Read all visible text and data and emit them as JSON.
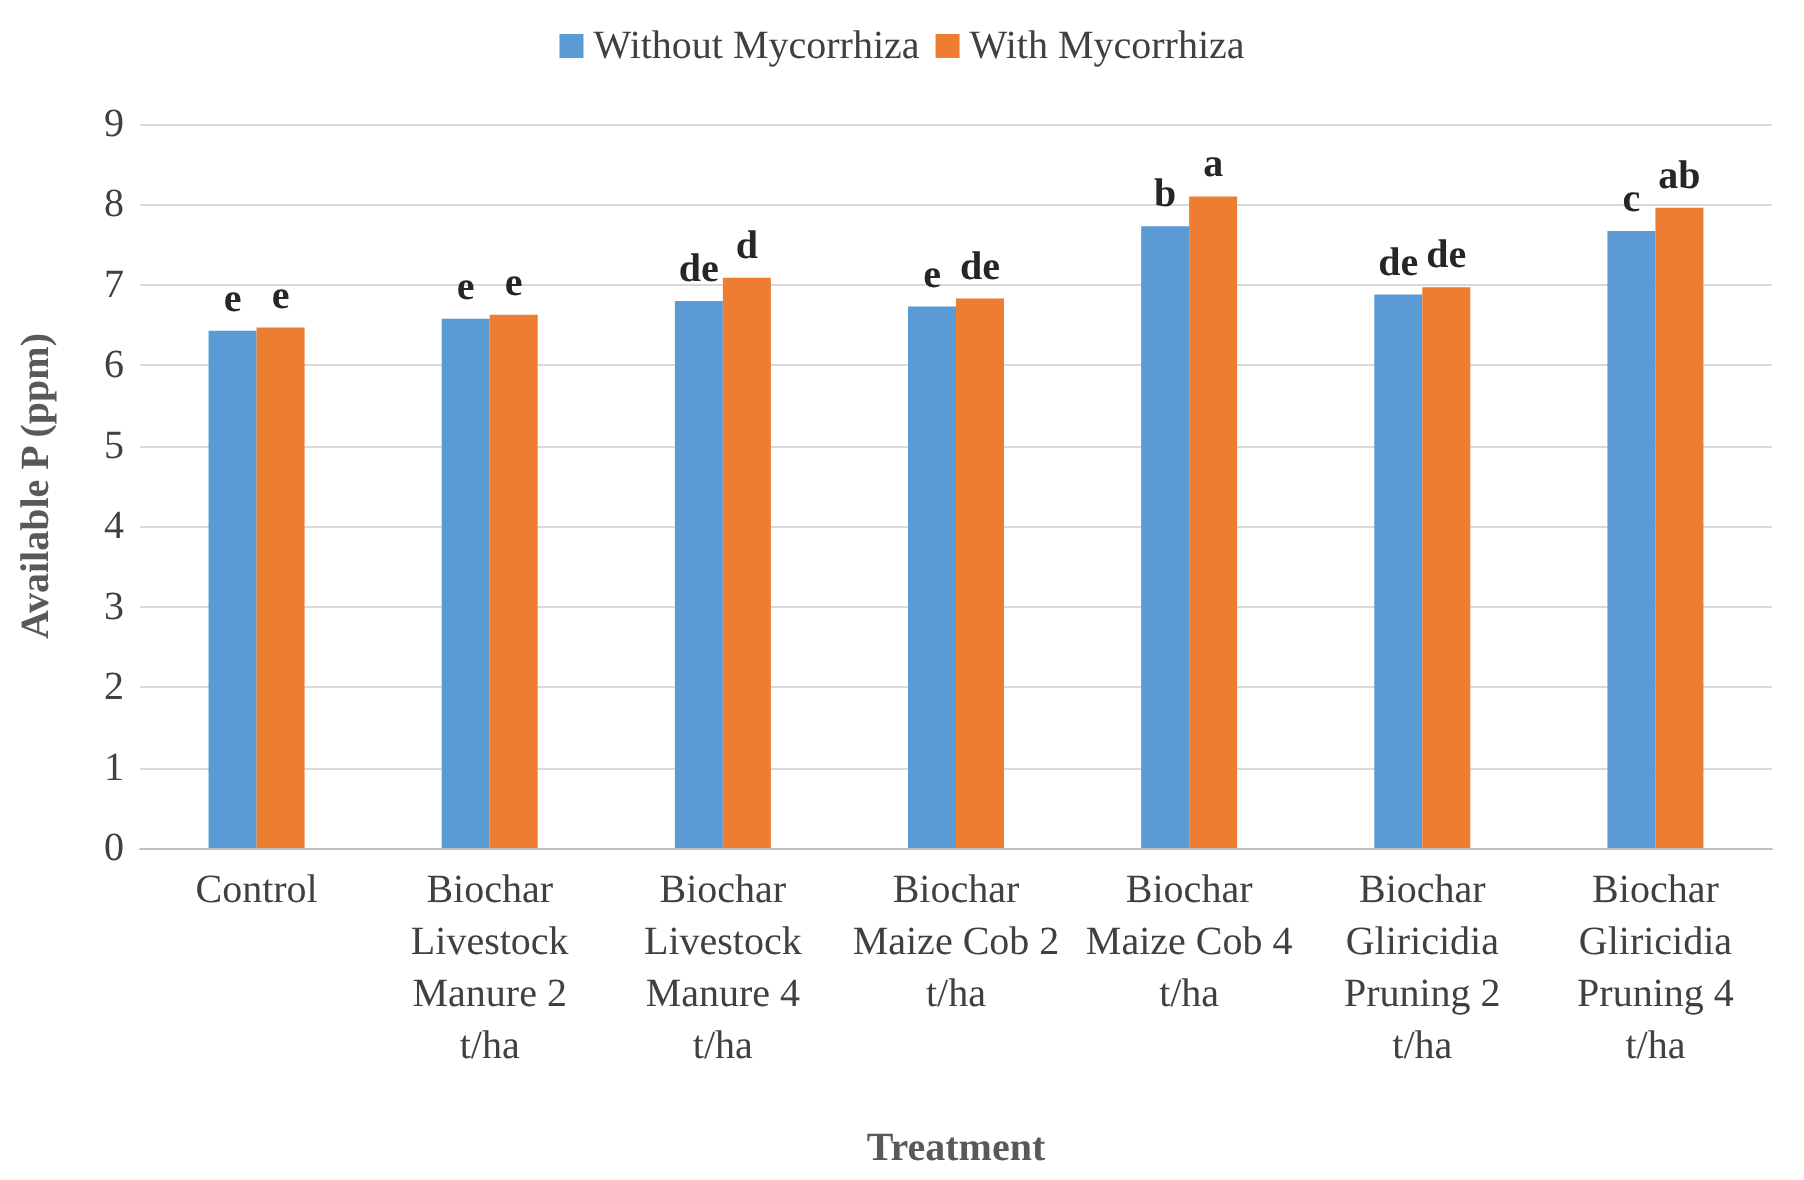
{
  "chart_data": {
    "type": "bar",
    "xlabel": "Treatment",
    "ylabel": "Available P (ppm)",
    "categories": [
      "Control",
      "Biochar Livestock Manure 2 t/ha",
      "Biochar Livestock Manure 4 t/ha",
      "Biochar Maize Cob 2 t/ha",
      "Biochar Maize Cob 4 t/ha",
      "Biochar Gliricidia Pruning 2 t/ha",
      "Biochar Gliricidia Pruning 4 t/ha"
    ],
    "series": [
      {
        "name": "Without Mycorrhiza",
        "color": "#5b9bd5",
        "values": [
          6.43,
          6.58,
          6.8,
          6.73,
          7.73,
          6.88,
          7.67
        ],
        "value_labels": [
          "e",
          "e",
          "de",
          "e",
          "b",
          "de",
          "c"
        ]
      },
      {
        "name": "With Mycorrhiza",
        "color": "#ed7d31",
        "values": [
          6.47,
          6.63,
          7.09,
          6.83,
          8.1,
          6.97,
          7.96
        ],
        "value_labels": [
          "e",
          "e",
          "d",
          "de",
          "a",
          "de",
          "ab"
        ]
      }
    ],
    "ylim": [
      0,
      9
    ],
    "yticks": [
      0,
      1,
      2,
      3,
      4,
      5,
      6,
      7,
      8,
      9
    ],
    "grid": "y",
    "legend": "top"
  }
}
